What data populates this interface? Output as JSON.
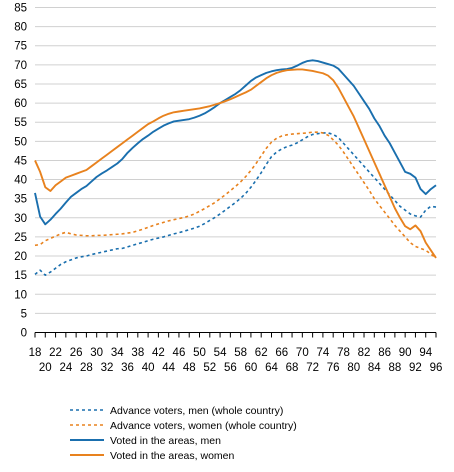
{
  "chart_data": {
    "type": "line",
    "x": [
      18,
      19,
      20,
      21,
      22,
      23,
      24,
      25,
      26,
      27,
      28,
      29,
      30,
      31,
      32,
      33,
      34,
      35,
      36,
      37,
      38,
      39,
      40,
      41,
      42,
      43,
      44,
      45,
      46,
      47,
      48,
      49,
      50,
      51,
      52,
      53,
      54,
      55,
      56,
      57,
      58,
      59,
      60,
      61,
      62,
      63,
      64,
      65,
      66,
      67,
      68,
      69,
      70,
      71,
      72,
      73,
      74,
      75,
      76,
      77,
      78,
      79,
      80,
      81,
      82,
      83,
      84,
      85,
      86,
      87,
      88,
      89,
      90,
      91,
      92,
      93,
      94,
      95,
      96
    ],
    "xticks_top": [
      "18",
      "22",
      "26",
      "30",
      "34",
      "38",
      "42",
      "46",
      "50",
      "54",
      "58",
      "62",
      "66",
      "70",
      "74",
      "78",
      "82",
      "86",
      "90",
      "94"
    ],
    "xticks_bottom": [
      "20",
      "24",
      "28",
      "32",
      "36",
      "40",
      "44",
      "48",
      "52",
      "56",
      "60",
      "64",
      "68",
      "72",
      "76",
      "80",
      "84",
      "88",
      "92",
      "96"
    ],
    "yticks": [
      "0",
      "5",
      "10",
      "15",
      "20",
      "25",
      "30",
      "35",
      "40",
      "45",
      "50",
      "55",
      "60",
      "65",
      "70",
      "75",
      "80",
      "85"
    ],
    "ylim": [
      0,
      85
    ],
    "grid": "horizontal",
    "legend_position": "bottom",
    "series": [
      {
        "name": "Advance voters, men (whole country)",
        "color": "#1a6fae",
        "dash": true,
        "values": [
          15.2,
          16.3,
          15.0,
          15.8,
          16.8,
          17.8,
          18.5,
          19.0,
          19.5,
          19.8,
          20.0,
          20.4,
          20.7,
          21.0,
          21.3,
          21.6,
          21.9,
          22.0,
          22.4,
          22.8,
          23.2,
          23.6,
          24.0,
          24.4,
          24.7,
          25.0,
          25.4,
          25.8,
          26.1,
          26.5,
          26.9,
          27.3,
          27.8,
          28.5,
          29.3,
          30.1,
          31.0,
          32.0,
          33.0,
          34.0,
          35.1,
          36.4,
          38.0,
          39.8,
          41.8,
          44.0,
          46.0,
          47.2,
          48.0,
          48.6,
          49.0,
          49.6,
          50.4,
          51.2,
          51.8,
          52.0,
          52.2,
          52.2,
          51.8,
          51.0,
          49.5,
          48.0,
          46.5,
          45.0,
          43.5,
          42.0,
          40.5,
          39.0,
          37.5,
          36.0,
          34.5,
          33.0,
          32.0,
          31.0,
          30.5,
          30.2,
          32.0,
          33.0,
          32.8
        ]
      },
      {
        "name": "Advance voters, women (whole country)",
        "color": "#e8821e",
        "dash": true,
        "values": [
          22.8,
          23.0,
          24.0,
          24.6,
          25.2,
          25.8,
          26.2,
          25.8,
          25.5,
          25.4,
          25.3,
          25.3,
          25.4,
          25.4,
          25.5,
          25.6,
          25.7,
          25.8,
          26.0,
          26.2,
          26.6,
          27.0,
          27.5,
          28.0,
          28.4,
          28.8,
          29.2,
          29.5,
          29.8,
          30.1,
          30.5,
          31.0,
          31.7,
          32.4,
          33.2,
          34.0,
          35.0,
          36.0,
          37.1,
          38.2,
          39.4,
          40.8,
          42.4,
          44.2,
          46.2,
          48.2,
          49.8,
          50.8,
          51.4,
          51.7,
          51.9,
          52.0,
          52.1,
          52.2,
          52.4,
          52.4,
          52.2,
          51.6,
          50.4,
          49.0,
          47.2,
          45.2,
          43.2,
          41.2,
          39.2,
          37.2,
          35.0,
          33.2,
          31.5,
          29.8,
          28.0,
          26.5,
          25.0,
          23.5,
          22.5,
          22.0,
          21.5,
          20.5,
          19.5
        ]
      },
      {
        "name": "Voted in the areas, men",
        "color": "#1a6fae",
        "dash": false,
        "values": [
          36.5,
          30.3,
          28.3,
          29.5,
          31.0,
          32.4,
          34.0,
          35.5,
          36.5,
          37.5,
          38.3,
          39.5,
          40.7,
          41.6,
          42.4,
          43.3,
          44.2,
          45.4,
          47.0,
          48.3,
          49.5,
          50.6,
          51.5,
          52.5,
          53.3,
          54.1,
          54.7,
          55.2,
          55.4,
          55.6,
          55.8,
          56.2,
          56.7,
          57.3,
          58.1,
          59.0,
          60.0,
          60.8,
          61.6,
          62.4,
          63.4,
          64.6,
          65.8,
          66.7,
          67.3,
          67.9,
          68.3,
          68.6,
          68.8,
          68.9,
          69.2,
          69.8,
          70.5,
          71.0,
          71.2,
          71.0,
          70.6,
          70.2,
          69.8,
          69.0,
          67.5,
          66.0,
          64.5,
          62.5,
          60.5,
          58.5,
          56.0,
          54.0,
          51.5,
          49.5,
          47.0,
          44.5,
          42.0,
          41.5,
          40.5,
          37.5,
          36.2,
          37.5,
          38.5
        ]
      },
      {
        "name": "Voted in the areas, women",
        "color": "#e8821e",
        "dash": false,
        "values": [
          45.0,
          42.0,
          38.0,
          37.0,
          38.5,
          39.5,
          40.5,
          41.0,
          41.5,
          42.0,
          42.5,
          43.5,
          44.5,
          45.5,
          46.5,
          47.5,
          48.5,
          49.5,
          50.5,
          51.5,
          52.5,
          53.5,
          54.5,
          55.2,
          56.0,
          56.7,
          57.2,
          57.6,
          57.8,
          58.0,
          58.2,
          58.4,
          58.6,
          58.9,
          59.2,
          59.6,
          60.0,
          60.5,
          61.0,
          61.6,
          62.2,
          62.8,
          63.5,
          64.5,
          65.5,
          66.5,
          67.3,
          67.9,
          68.3,
          68.6,
          68.7,
          68.8,
          68.8,
          68.6,
          68.4,
          68.1,
          67.8,
          67.2,
          66.0,
          64.0,
          61.5,
          59.0,
          56.5,
          53.5,
          50.5,
          47.5,
          44.5,
          41.5,
          38.5,
          35.5,
          32.5,
          30.0,
          27.8,
          27.0,
          28.0,
          26.5,
          23.5,
          21.5,
          19.5
        ]
      }
    ]
  }
}
